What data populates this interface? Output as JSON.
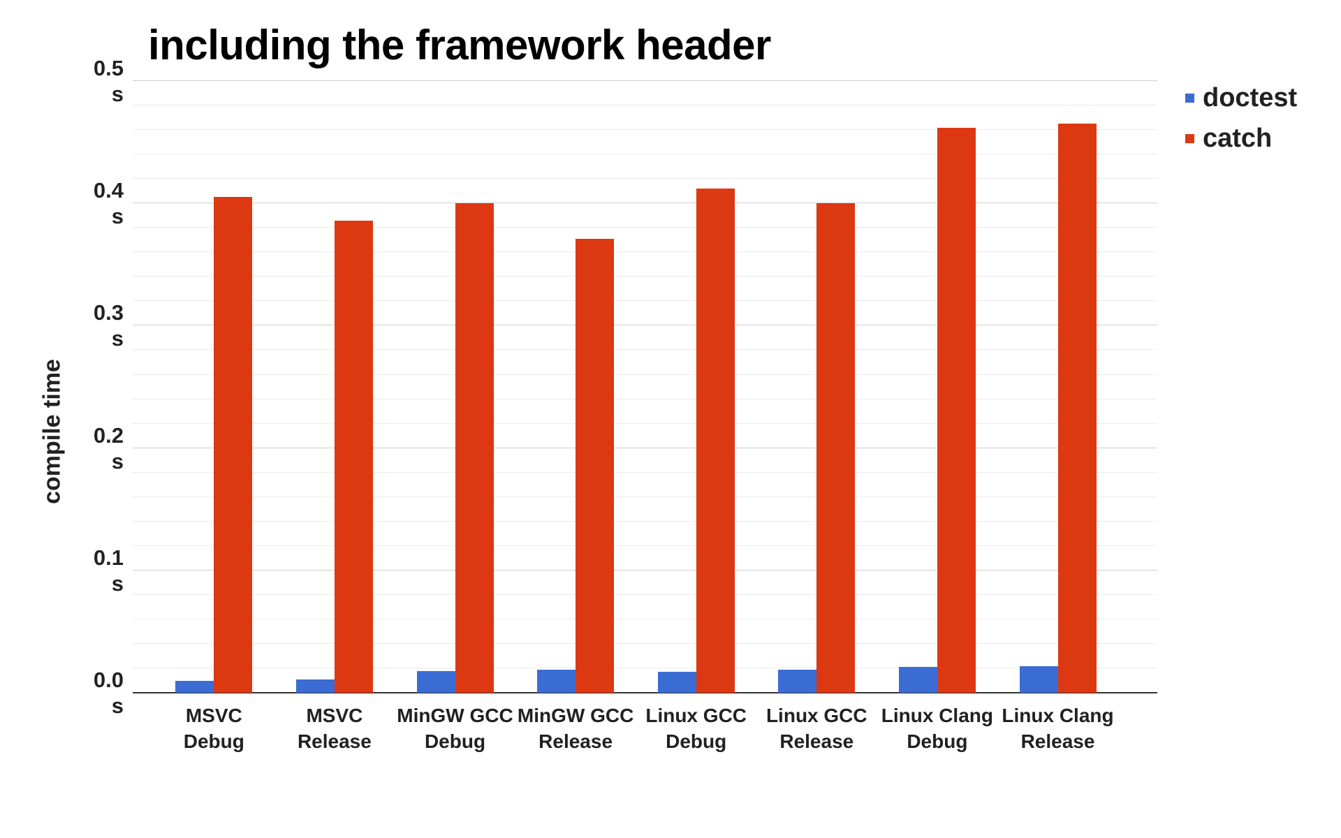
{
  "chart": {
    "title": "including the framework header",
    "y_axis_title": "compile time",
    "background_color": "#ffffff",
    "text_color": "#212121",
    "gridline_minor_color": "#ebebeb",
    "gridline_major_color": "#cfcfcf",
    "baseline_color": "#333333"
  },
  "chart_data": {
    "type": "bar",
    "title": "including the framework header",
    "xlabel": "",
    "ylabel": "compile time",
    "unit": "s",
    "ylim": [
      0,
      0.5
    ],
    "grid": {
      "major_step": 0.1,
      "minor_step": 0.02,
      "visible": true
    },
    "legend_position": "right",
    "categories": [
      [
        "MSVC",
        "Debug"
      ],
      [
        "MSVC",
        "Release"
      ],
      [
        "MinGW GCC",
        "Debug"
      ],
      [
        "MinGW GCC",
        "Release"
      ],
      [
        "Linux GCC",
        "Debug"
      ],
      [
        "Linux GCC",
        "Release"
      ],
      [
        "Linux Clang",
        "Debug"
      ],
      [
        "Linux Clang",
        "Release"
      ]
    ],
    "y_ticks": [
      {
        "value": 0.0,
        "label": "0.0",
        "unit": "s"
      },
      {
        "value": 0.1,
        "label": "0.1",
        "unit": "s"
      },
      {
        "value": 0.2,
        "label": "0.2",
        "unit": "s"
      },
      {
        "value": 0.3,
        "label": "0.3",
        "unit": "s"
      },
      {
        "value": 0.4,
        "label": "0.4",
        "unit": "s"
      },
      {
        "value": 0.5,
        "label": "0.5",
        "unit": "s"
      }
    ],
    "series": [
      {
        "name": "doctest",
        "color": "#3b6cd3",
        "values": [
          0.01,
          0.011,
          0.018,
          0.019,
          0.017,
          0.019,
          0.021,
          0.022
        ]
      },
      {
        "name": "catch",
        "color": "#dc3912",
        "values": [
          0.405,
          0.386,
          0.4,
          0.371,
          0.412,
          0.4,
          0.462,
          0.465
        ]
      }
    ]
  }
}
